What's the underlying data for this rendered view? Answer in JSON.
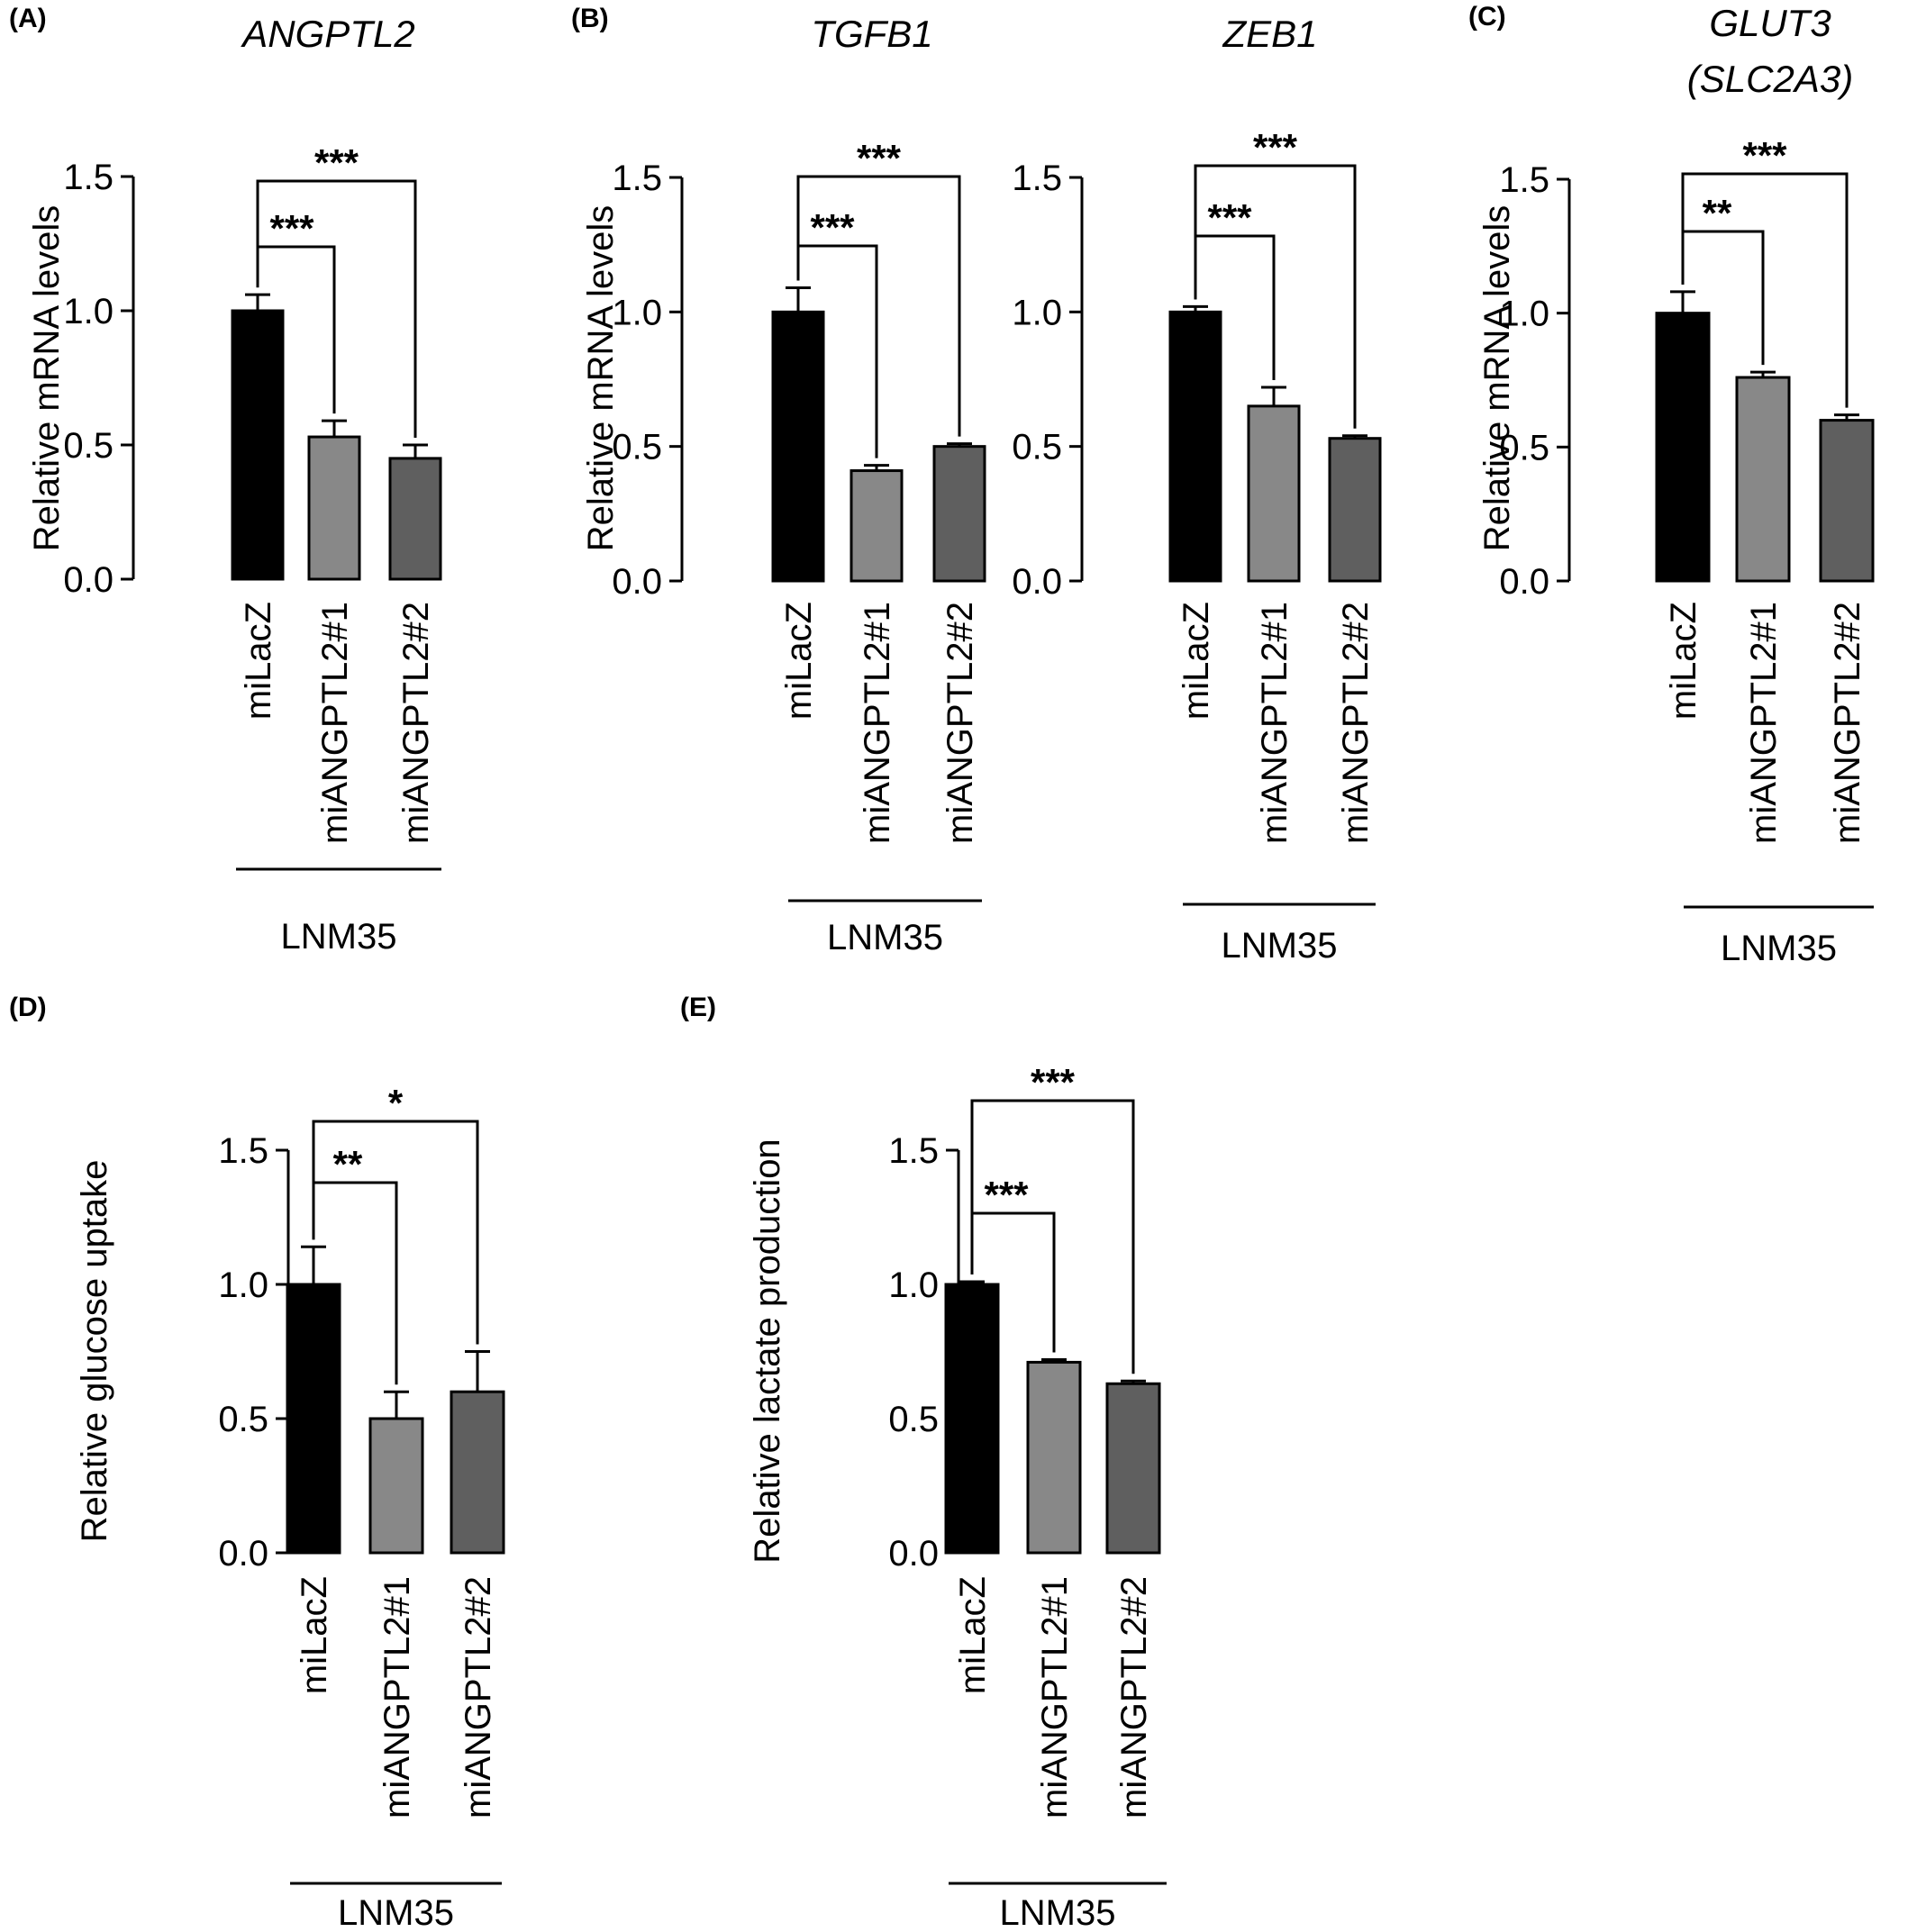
{
  "chart_data": [
    {
      "id": "A",
      "type": "bar",
      "panel_letter": "(A)",
      "title": "ANGPTL2",
      "ylabel": "Relative mRNA levels",
      "ylim": [
        0,
        1.5
      ],
      "yticks": [
        "0.0",
        "0.5",
        "1.0",
        "1.5"
      ],
      "categories": [
        "miLacZ",
        "miANGPTL2#1",
        "miANGPTL2#2"
      ],
      "values": [
        1.0,
        0.53,
        0.45
      ],
      "errors": [
        0.06,
        0.06,
        0.05
      ],
      "colors": [
        "#000000",
        "#888888",
        "#5f5f5f"
      ],
      "group_label": "LNM35",
      "significance": [
        {
          "from": 0,
          "to": 1,
          "label": "***"
        },
        {
          "from": 0,
          "to": 2,
          "label": "***"
        }
      ]
    },
    {
      "id": "B1",
      "type": "bar",
      "panel_letter": "(B)",
      "title": "TGFB1",
      "ylabel": "Relative mRNA levels",
      "ylim": [
        0,
        1.5
      ],
      "yticks": [
        "0.0",
        "0.5",
        "1.0",
        "1.5"
      ],
      "categories": [
        "miLacZ",
        "miANGPTL2#1",
        "miANGPTL2#2"
      ],
      "values": [
        1.0,
        0.41,
        0.5
      ],
      "errors": [
        0.09,
        0.02,
        0.01
      ],
      "colors": [
        "#000000",
        "#888888",
        "#5f5f5f"
      ],
      "group_label": "LNM35",
      "significance": [
        {
          "from": 0,
          "to": 1,
          "label": "***"
        },
        {
          "from": 0,
          "to": 2,
          "label": "***"
        }
      ]
    },
    {
      "id": "B2",
      "type": "bar",
      "panel_letter": "",
      "title": "ZEB1",
      "ylabel": "",
      "ylim": [
        0,
        1.5
      ],
      "yticks": [
        "0.0",
        "0.5",
        "1.0",
        "1.5"
      ],
      "categories": [
        "miLacZ",
        "miANGPTL2#1",
        "miANGPTL2#2"
      ],
      "values": [
        1.0,
        0.65,
        0.53
      ],
      "errors": [
        0.02,
        0.07,
        0.01
      ],
      "colors": [
        "#000000",
        "#888888",
        "#5f5f5f"
      ],
      "group_label": "LNM35",
      "significance": [
        {
          "from": 0,
          "to": 1,
          "label": "***"
        },
        {
          "from": 0,
          "to": 2,
          "label": "***"
        }
      ]
    },
    {
      "id": "C",
      "type": "bar",
      "panel_letter": "(C)",
      "title": "GLUT3",
      "title_line2": "(SLC2A3)",
      "ylabel": "Relative mRNA levels",
      "ylim": [
        0,
        1.5
      ],
      "yticks": [
        "0.0",
        "0.5",
        "1.0",
        "1.5"
      ],
      "categories": [
        "miLacZ",
        "miANGPTL2#1",
        "miANGPTL2#2"
      ],
      "values": [
        1.0,
        0.76,
        0.6
      ],
      "errors": [
        0.08,
        0.02,
        0.02
      ],
      "colors": [
        "#000000",
        "#888888",
        "#5f5f5f"
      ],
      "group_label": "LNM35",
      "significance": [
        {
          "from": 0,
          "to": 1,
          "label": "**"
        },
        {
          "from": 0,
          "to": 2,
          "label": "***"
        }
      ]
    },
    {
      "id": "D",
      "type": "bar",
      "panel_letter": "(D)",
      "title": "",
      "ylabel": "Relative glucose uptake",
      "ylim": [
        0,
        1.5
      ],
      "yticks": [
        "0.0",
        "0.5",
        "1.0",
        "1.5"
      ],
      "categories": [
        "miLacZ",
        "miANGPTL2#1",
        "miANGPTL2#2"
      ],
      "values": [
        1.0,
        0.5,
        0.6
      ],
      "errors": [
        0.14,
        0.1,
        0.15
      ],
      "colors": [
        "#000000",
        "#888888",
        "#5f5f5f"
      ],
      "group_label": "LNM35",
      "significance": [
        {
          "from": 0,
          "to": 1,
          "label": "**"
        },
        {
          "from": 0,
          "to": 2,
          "label": "*"
        }
      ]
    },
    {
      "id": "E",
      "type": "bar",
      "panel_letter": "(E)",
      "title": "",
      "ylabel": "Relative lactate production",
      "ylim": [
        0,
        1.5
      ],
      "yticks": [
        "0.0",
        "0.5",
        "1.0",
        "1.5"
      ],
      "categories": [
        "miLacZ",
        "miANGPTL2#1",
        "miANGPTL2#2"
      ],
      "values": [
        1.0,
        0.71,
        0.63
      ],
      "errors": [
        0.01,
        0.01,
        0.01
      ],
      "colors": [
        "#000000",
        "#888888",
        "#5f5f5f"
      ],
      "group_label": "LNM35",
      "significance": [
        {
          "from": 0,
          "to": 1,
          "label": "***"
        },
        {
          "from": 0,
          "to": 2,
          "label": "***"
        }
      ]
    }
  ]
}
